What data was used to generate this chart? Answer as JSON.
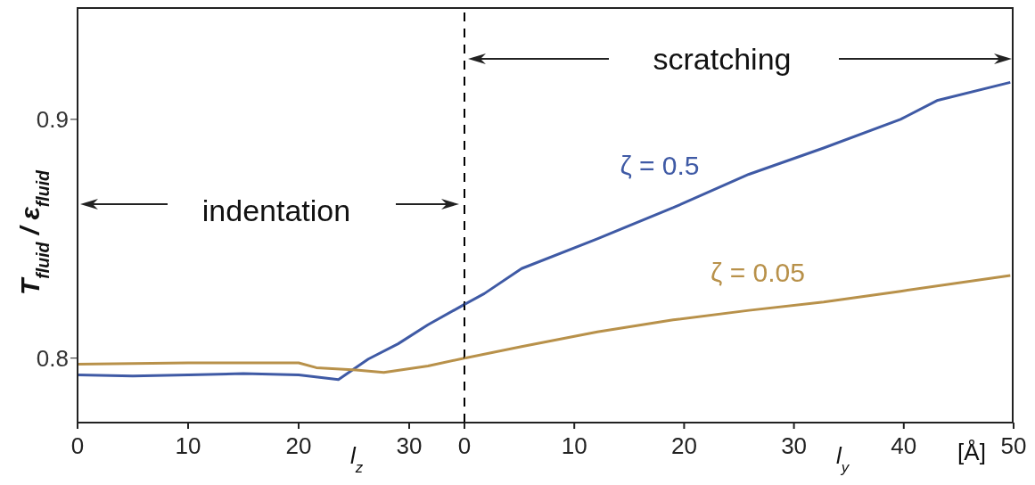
{
  "chart_data": [
    {
      "type": "line",
      "ylabel": "T$_{fluid}$ / ε$_{fluid}$",
      "annotations": [
        "indentation",
        "l$_{z}$"
      ],
      "xlim": [
        0,
        35
      ],
      "xticks": [
        0,
        10,
        20,
        30
      ],
      "ylim": [
        0.773,
        0.947
      ],
      "yticks": [
        0.8,
        0.9
      ],
      "grid": false,
      "legend": false,
      "marker": "none",
      "line_style": "solid",
      "series": [
        {
          "color": "#3f5aa5",
          "x": [
            0,
            5,
            10,
            15,
            20,
            23.6,
            26.3,
            29,
            31.7,
            35
          ],
          "values": [
            0.793,
            0.7925,
            0.793,
            0.7935,
            0.793,
            0.791,
            0.7996,
            0.806,
            0.814,
            0.8225
          ]
        },
        {
          "color": "#b8914a",
          "x": [
            0,
            10,
            20,
            21.6,
            25.2,
            27.7,
            31.7,
            35
          ],
          "values": [
            0.7975,
            0.798,
            0.798,
            0.796,
            0.795,
            0.794,
            0.7967,
            0.8
          ]
        }
      ]
    },
    {
      "type": "line",
      "xlabel": "[Å]",
      "annotations": [
        "scratching",
        "l$_{y}$"
      ],
      "xlim": [
        0,
        50
      ],
      "xticks": [
        0,
        10,
        20,
        30,
        40,
        50
      ],
      "ylim": [
        0.773,
        0.947
      ],
      "tick_labels": "x",
      "grid": false,
      "legend": false,
      "marker": "none",
      "line_style": "solid",
      "ref_lines": [
        {
          "axis": "x",
          "value": 0,
          "color": "#000000",
          "line_style": "dashed"
        }
      ],
      "series": [
        {
          "name": "ζ = 0.5",
          "color": "#3f5aa5",
          "x": [
            0,
            1.8,
            5.2,
            12.1,
            19,
            25.9,
            32.7,
            39.7,
            43.1,
            49.7
          ],
          "values": [
            0.8225,
            0.827,
            0.8375,
            0.85,
            0.863,
            0.877,
            0.888,
            0.9,
            0.908,
            0.9155
          ]
        },
        {
          "name": "ζ = 0.05",
          "color": "#b8914a",
          "x": [
            0,
            5.2,
            12.1,
            19,
            25.9,
            32.7,
            39.7,
            49.7
          ],
          "values": [
            0.8,
            0.8048,
            0.811,
            0.816,
            0.82,
            0.8235,
            0.828,
            0.8346
          ]
        }
      ]
    }
  ]
}
